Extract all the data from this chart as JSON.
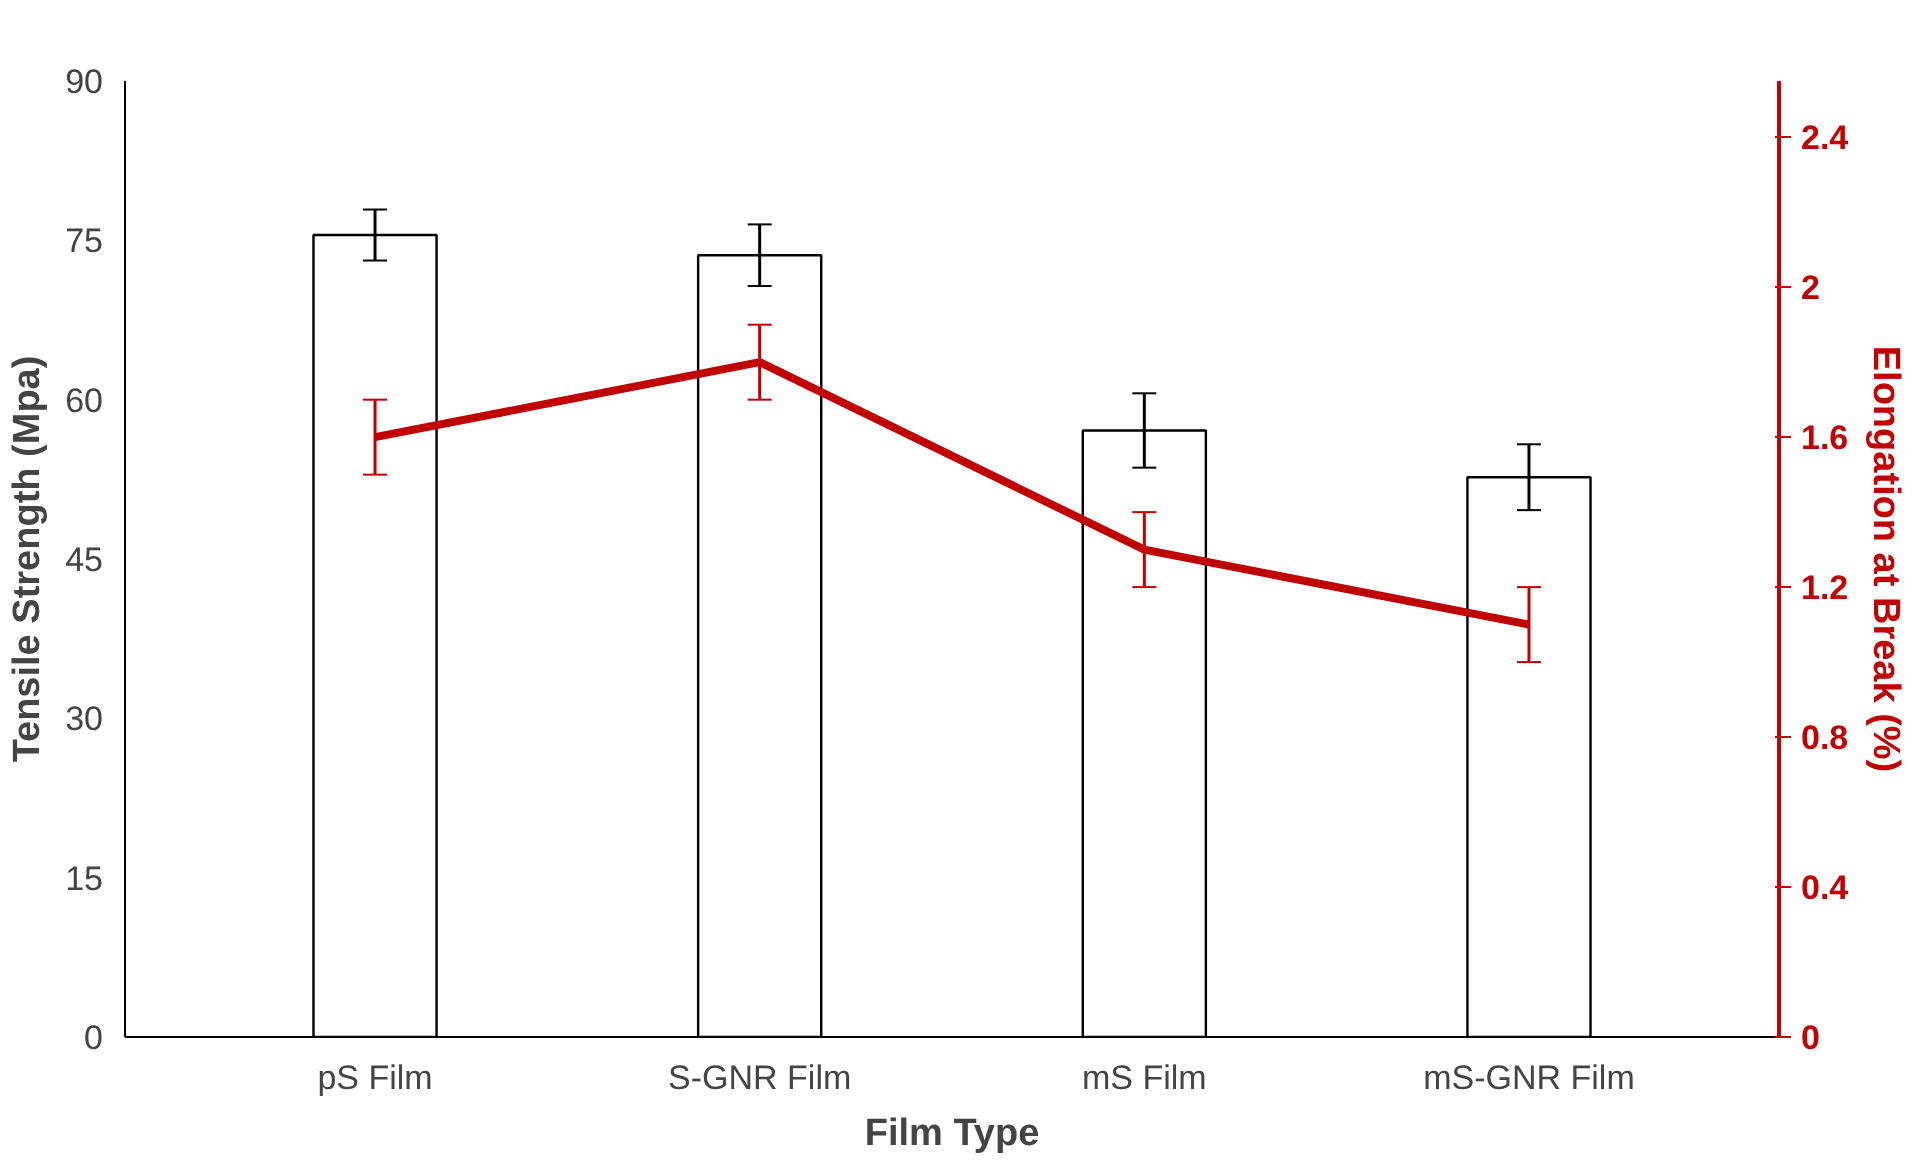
{
  "chart_data": {
    "type": "bar",
    "categories": [
      "pS Film",
      "S-GNR Film",
      "mS Film",
      "mS-GNR Film"
    ],
    "xlabel": "Film Type",
    "ylabel": "Tensile Strength (Mpa)",
    "y2label": "Elongation at Break (%)",
    "ylim": [
      0,
      90
    ],
    "yticks": [
      0,
      15,
      30,
      45,
      60,
      75,
      90
    ],
    "y2lim": [
      0,
      2.55
    ],
    "y2ticks": [
      0,
      0.4,
      0.8,
      1.2,
      1.6,
      2,
      2.4
    ],
    "series": [
      {
        "color": "#ffffff",
        "values": [
          75.5,
          73.6,
          57.1,
          52.7
        ],
        "errors": [
          2.4,
          2.9,
          3.5,
          3.1
        ]
      },
      {
        "type": "line",
        "axis": "y2",
        "color": "#c00000",
        "values": [
          1.6,
          1.8,
          1.3,
          1.1
        ],
        "errors": [
          0.1,
          0.1,
          0.1,
          0.1
        ]
      }
    ]
  }
}
